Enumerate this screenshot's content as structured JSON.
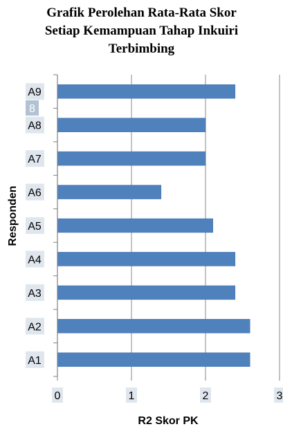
{
  "chart_data": {
    "type": "bar",
    "orientation": "horizontal",
    "title": [
      "Grafik  Perolehan Rata-Rata Skor",
      "Setiap Kemampuan Tahap Inkuiri",
      "Terbimbing"
    ],
    "xlabel": "R2 Skor PK",
    "ylabel": "Responden",
    "categories": [
      "A1",
      "A2",
      "A3",
      "A4",
      "A5",
      "A6",
      "A7",
      "A8",
      "A9"
    ],
    "values": [
      2.6,
      2.6,
      2.4,
      2.4,
      2.1,
      1.4,
      2.0,
      2.0,
      2.4
    ],
    "xlim": [
      0,
      3
    ],
    "x_ticks": [
      "0",
      "1",
      "2",
      "3"
    ],
    "stray_label": "8",
    "grid": "vertical",
    "legend": "none",
    "colors": {
      "bar": "#4f81bd",
      "bar_stroke": "#3f6fa8",
      "grid": "#8a8a8a",
      "axis": "#7f7f7f",
      "label_highlight": "#dfe6ee",
      "stray_box": "#b3c2d3"
    }
  }
}
